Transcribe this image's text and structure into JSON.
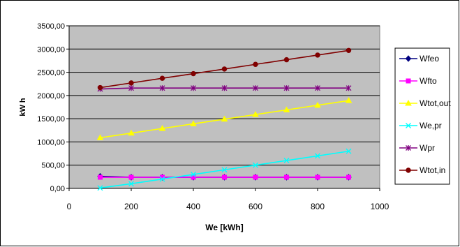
{
  "chart_data": {
    "type": "line",
    "title": "",
    "xlabel": "We [kWh]",
    "ylabel": "kW h",
    "x": [
      100,
      200,
      300,
      400,
      500,
      600,
      700,
      800,
      900
    ],
    "xlim": [
      0,
      1000
    ],
    "ylim": [
      0,
      3500
    ],
    "xticks": [
      0,
      200,
      400,
      600,
      800,
      1000
    ],
    "xtick_labels": [
      "0",
      "200",
      "400",
      "600",
      "800",
      "1000"
    ],
    "yticks": [
      0,
      500,
      1000,
      1500,
      2000,
      2500,
      3000,
      3500
    ],
    "ytick_labels": [
      "0,00",
      "500,00",
      "1000,00",
      "1500,00",
      "2000,00",
      "2500,00",
      "3000,00",
      "3500,00"
    ],
    "grid": true,
    "plot_background": "#c0c0c0",
    "legend_position": "right",
    "series": [
      {
        "name": "Wfeo",
        "color": "#000080",
        "marker": "diamond",
        "values": [
          260,
          240,
          240,
          240,
          240,
          240,
          240,
          240,
          240
        ]
      },
      {
        "name": "Wfto",
        "color": "#ff00ff",
        "marker": "square",
        "values": [
          240,
          240,
          240,
          240,
          240,
          240,
          240,
          240,
          240
        ]
      },
      {
        "name": "Wtot,out",
        "color": "#ffff00",
        "marker": "triangle",
        "values": [
          1090,
          1190,
          1290,
          1390,
          1490,
          1590,
          1690,
          1790,
          1890
        ]
      },
      {
        "name": "We,pr",
        "color": "#00ffff",
        "marker": "x",
        "values": [
          10,
          100,
          200,
          300,
          400,
          500,
          600,
          700,
          800
        ]
      },
      {
        "name": "Wpr",
        "color": "#800080",
        "marker": "star",
        "values": [
          2140,
          2160,
          2160,
          2160,
          2160,
          2160,
          2160,
          2160,
          2160
        ]
      },
      {
        "name": "Wtot,in",
        "color": "#800000",
        "marker": "circle",
        "values": [
          2170,
          2270,
          2370,
          2470,
          2570,
          2670,
          2770,
          2870,
          2970
        ]
      }
    ]
  }
}
